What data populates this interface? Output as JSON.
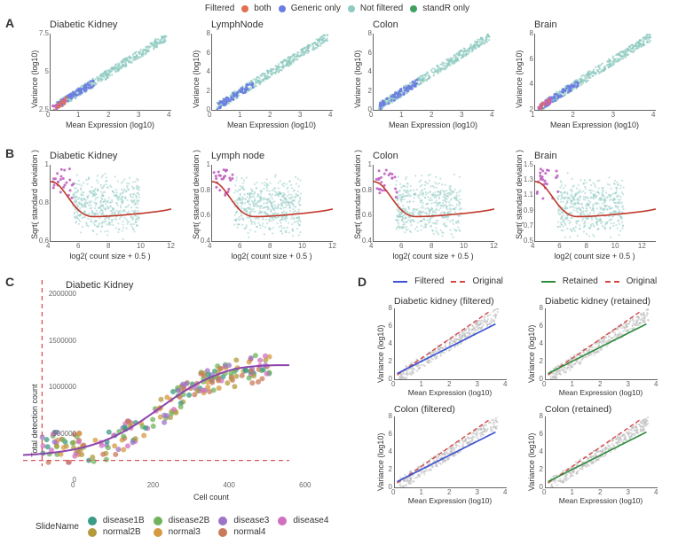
{
  "colors": {
    "not_filtered": "#8ecac1",
    "generic_only": "#6a7de0",
    "both": "#e07050",
    "standR_only": "#40a060",
    "magenta": "#c060c0",
    "red_line": "#c0392b",
    "purple_line": "#8e44ad",
    "grey_points": "#bdbdbd",
    "filtered_line": "#3b52d1",
    "original_dashed": "#d64545",
    "retained_line": "#2e8c3f",
    "axis": "#666666"
  },
  "panelA": {
    "legend_title": "Filtered",
    "legend": [
      {
        "label": "both",
        "color_key": "both"
      },
      {
        "label": "Generic only",
        "color_key": "generic_only"
      },
      {
        "label": "Not filtered",
        "color_key": "not_filtered"
      },
      {
        "label": "standR only",
        "color_key": "standR_only"
      }
    ],
    "x_label": "Mean Expression (log10)",
    "y_label": "Variance (log10)",
    "plots": [
      {
        "title": "Diabetic Kidney",
        "xlim": [
          0,
          4
        ],
        "ylim": [
          2.5,
          7.5
        ],
        "ytick_step": 2.5,
        "seed": 1,
        "low_both": true
      },
      {
        "title": "LymphNode",
        "xlim": [
          0,
          4
        ],
        "ylim": [
          0,
          8
        ],
        "ytick_step": 2,
        "seed": 2,
        "low_both": false
      },
      {
        "title": "Colon",
        "xlim": [
          0,
          4
        ],
        "ylim": [
          0,
          8
        ],
        "ytick_step": 2,
        "seed": 3,
        "low_both": false
      },
      {
        "title": "Brain",
        "xlim": [
          1,
          4
        ],
        "ylim": [
          2,
          8
        ],
        "ytick_step": 2,
        "seed": 4,
        "low_both": true
      }
    ]
  },
  "panelB": {
    "x_label": "log2( count size + 0.5 )",
    "y_label": "Sqrt( standard deviation )",
    "plots": [
      {
        "title": "Diabetic Kidney",
        "xlim": [
          4,
          12
        ],
        "ylim": [
          0.6,
          1.0
        ],
        "seed": 5
      },
      {
        "title": "Lymph node",
        "xlim": [
          4,
          12
        ],
        "ylim": [
          0.4,
          1.0
        ],
        "seed": 6
      },
      {
        "title": "Colon",
        "xlim": [
          4,
          12
        ],
        "ylim": [
          0.4,
          1.0
        ],
        "seed": 7
      },
      {
        "title": "Brain",
        "xlim": [
          4,
          13
        ],
        "ylim": [
          0.5,
          1.5
        ],
        "seed": 8
      }
    ]
  },
  "panelC": {
    "title": "Diabetic Kidney",
    "x_label": "Cell count",
    "y_label": "Total detection count",
    "xlim": [
      0,
      700
    ],
    "ylim": [
      0,
      2000000
    ],
    "vcut": 50,
    "hcut": 60000,
    "slide_title": "SlideName",
    "slides": [
      {
        "name": "disease1B",
        "color": "#3a9b86"
      },
      {
        "name": "disease2B",
        "color": "#6fb35c"
      },
      {
        "name": "disease3",
        "color": "#9c74c8"
      },
      {
        "name": "disease4",
        "color": "#d06fbf"
      },
      {
        "name": "normal2B",
        "color": "#b29a3d"
      },
      {
        "name": "normal3",
        "color": "#d69a42"
      },
      {
        "name": "normal4",
        "color": "#c97a5a"
      }
    ]
  },
  "panelD": {
    "x_label": "Mean Expression (log10)",
    "y_label": "Variance (log10)",
    "legend_filtered": [
      {
        "label": "Filtered",
        "color_key": "filtered_line",
        "dashed": false
      },
      {
        "label": "Original",
        "color_key": "original_dashed",
        "dashed": true
      }
    ],
    "legend_retained": [
      {
        "label": "Retained",
        "color_key": "retained_line",
        "dashed": false
      },
      {
        "label": "Original",
        "color_key": "original_dashed",
        "dashed": true
      }
    ],
    "plots": [
      {
        "title": "Diabetic kidney (filtered)",
        "mode": "filtered",
        "xlim": [
          0,
          4
        ],
        "ylim": [
          0,
          8
        ],
        "seed": 9
      },
      {
        "title": "Diabetic kidney (retained)",
        "mode": "retained",
        "xlim": [
          0,
          4
        ],
        "ylim": [
          0,
          8
        ],
        "seed": 10
      },
      {
        "title": "Colon (filtered)",
        "mode": "filtered",
        "xlim": [
          0,
          4
        ],
        "ylim": [
          0,
          8
        ],
        "seed": 11
      },
      {
        "title": "Colon (retained)",
        "mode": "retained",
        "xlim": [
          0,
          4
        ],
        "ylim": [
          0,
          8
        ],
        "seed": 12
      }
    ]
  }
}
